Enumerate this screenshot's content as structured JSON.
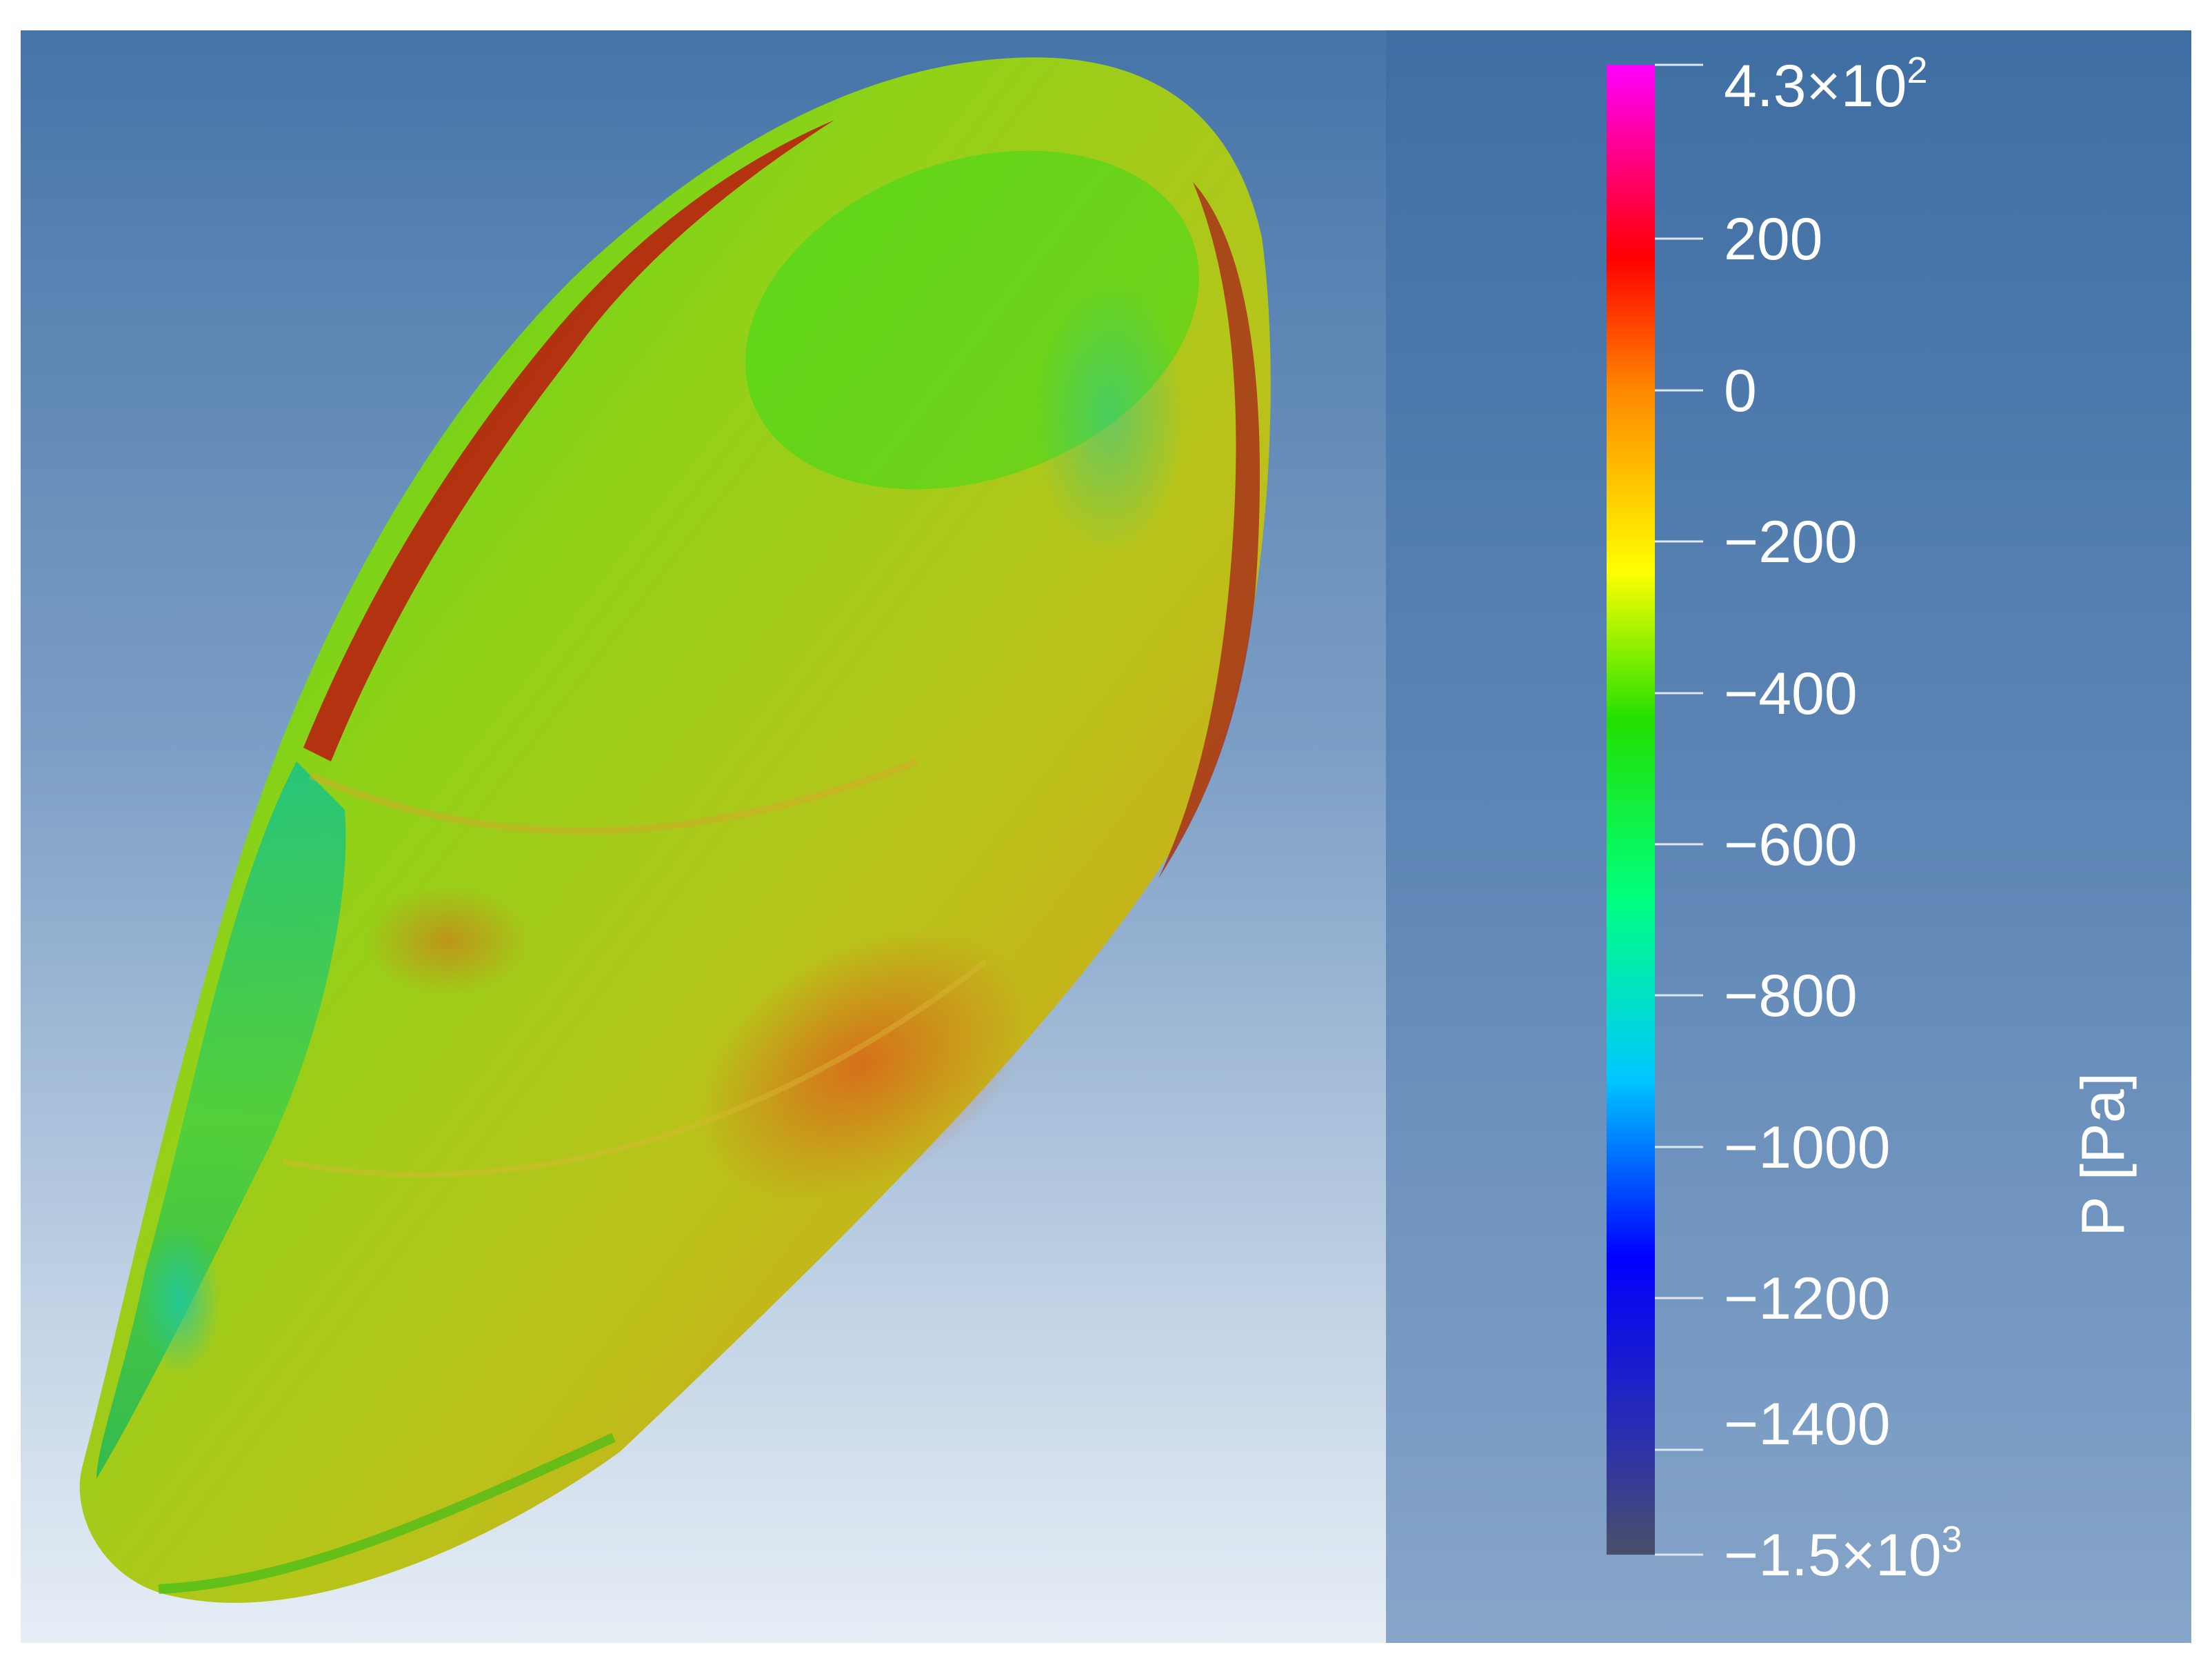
{
  "colorbar": {
    "title": "P [Pa]",
    "max_label": {
      "mantissa": "4.3×10",
      "exponent": "2"
    },
    "min_label": {
      "mantissa": "−1.5×10",
      "exponent": "3"
    },
    "tick_labels": [
      "200",
      "0",
      "−200",
      "−400",
      "−600",
      "−800",
      "−1000",
      "−1200",
      "−1400"
    ],
    "range": [
      -1500,
      430
    ],
    "colormap": [
      "#4a4f6a",
      "#0000ff",
      "#00c8ff",
      "#00ff80",
      "#22e000",
      "#ffff00",
      "#ff8a00",
      "#ff0000",
      "#ff00ff"
    ]
  },
  "colors": {
    "scene_top": "#4674a8",
    "scene_bottom": "#e7eef6",
    "panel": "#5e86b6",
    "surface_green": "#3fcf1a",
    "surface_yellow": "#b8c81a",
    "surface_orange": "#d9951e",
    "surface_red": "#b31f10",
    "surface_cyan": "#1ec9a8"
  }
}
